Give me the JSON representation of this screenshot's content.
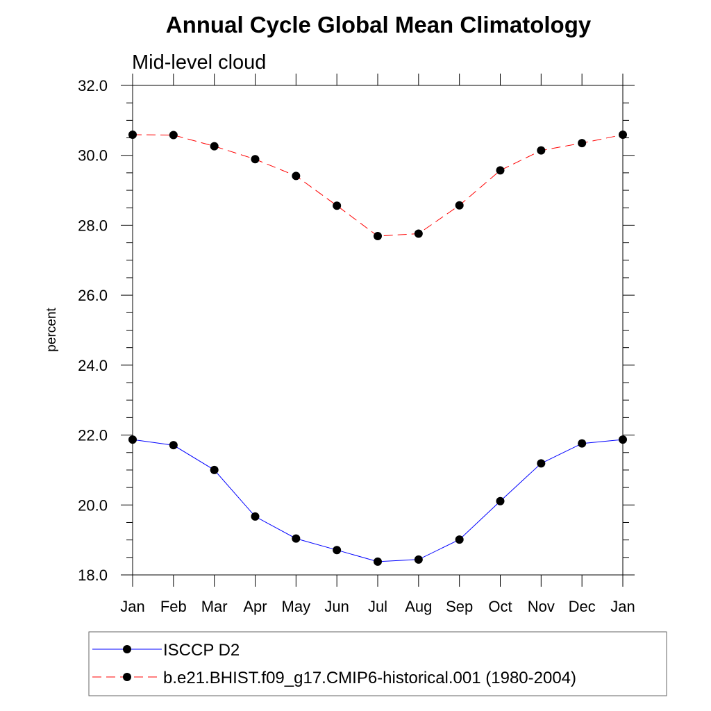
{
  "chart_data": {
    "type": "line",
    "title": "Annual Cycle Global Mean Climatology",
    "subtitle": "Mid-level cloud",
    "xlabel": "",
    "ylabel": "percent",
    "categories": [
      "Jan",
      "Feb",
      "Mar",
      "Apr",
      "May",
      "Jun",
      "Jul",
      "Aug",
      "Sep",
      "Oct",
      "Nov",
      "Dec",
      "Jan"
    ],
    "ylim": [
      18.0,
      32.0
    ],
    "yticks": [
      "18.0",
      "20.0",
      "22.0",
      "24.0",
      "26.0",
      "28.0",
      "30.0",
      "32.0"
    ],
    "ytick_values": [
      18,
      20,
      22,
      24,
      26,
      28,
      30,
      32
    ],
    "grid": false,
    "legend_position": "bottom",
    "series": [
      {
        "name": "ISCCP D2",
        "color": "#0000ff",
        "style": "solid",
        "marker": "filled-circle",
        "values": [
          21.87,
          21.71,
          21.0,
          19.67,
          19.04,
          18.71,
          18.38,
          18.44,
          19.01,
          20.11,
          21.19,
          21.76,
          21.87
        ]
      },
      {
        "name": "b.e21.BHIST.f09_g17.CMIP6-historical.001 (1980-2004)",
        "color": "#ff0000",
        "style": "dashed",
        "marker": "filled-circle",
        "values": [
          30.59,
          30.58,
          30.26,
          29.89,
          29.41,
          28.56,
          27.69,
          27.76,
          28.57,
          29.57,
          30.14,
          30.35,
          30.59
        ]
      }
    ]
  }
}
